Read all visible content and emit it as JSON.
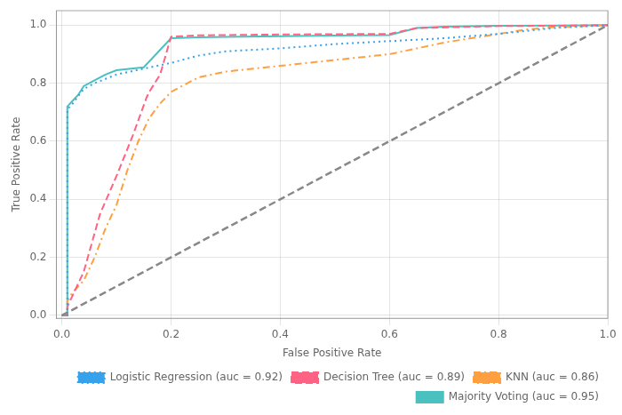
{
  "chart_data": {
    "type": "line",
    "xlabel": "False Positive Rate",
    "ylabel": "True Positive Rate",
    "xlim": [
      -0.01,
      1.0
    ],
    "ylim": [
      -0.01,
      1.05
    ],
    "xticks": [
      {
        "value": 0.0,
        "label": "0.0"
      },
      0.2,
      0.4,
      0.6,
      0.8,
      {
        "value": 1.0,
        "label": "1.0"
      }
    ],
    "yticks": [
      {
        "value": 0.0,
        "label": "0.0"
      },
      0.2,
      0.4,
      0.6,
      0.8,
      {
        "value": 1.0,
        "label": "1.0"
      }
    ],
    "grid": true,
    "legend": "lower right",
    "series": [
      {
        "color": "#888888",
        "line_style": "dashed",
        "x": [
          0.0,
          1.0
        ],
        "values": [
          0.0,
          1.0
        ]
      },
      {
        "name": "Logistic Regression (auc = 0.92)",
        "line_style": "dotted",
        "x": [
          0.0,
          0.01,
          0.01,
          0.02,
          0.04,
          0.06,
          0.1,
          0.15,
          0.2,
          0.22,
          0.25,
          0.3,
          0.35,
          0.4,
          0.5,
          0.6,
          0.65,
          0.7,
          0.8,
          0.85,
          0.9,
          1.0
        ],
        "values": [
          0.0,
          0.0,
          0.71,
          0.73,
          0.78,
          0.8,
          0.83,
          0.85,
          0.87,
          0.88,
          0.895,
          0.91,
          0.915,
          0.92,
          0.935,
          0.945,
          0.95,
          0.955,
          0.97,
          0.98,
          0.99,
          1.0
        ]
      },
      {
        "name": "Decision Tree (auc = 0.89)",
        "line_style": "dashed",
        "x": [
          0.0,
          0.01,
          0.01,
          0.02,
          0.04,
          0.07,
          0.1,
          0.13,
          0.155,
          0.16,
          0.18,
          0.2,
          0.25,
          0.4,
          0.6,
          0.65,
          0.8,
          0.9,
          1.0
        ],
        "values": [
          0.0,
          0.0,
          0.03,
          0.07,
          0.15,
          0.35,
          0.48,
          0.62,
          0.75,
          0.77,
          0.83,
          0.96,
          0.965,
          0.968,
          0.97,
          0.99,
          0.997,
          0.998,
          1.0
        ]
      },
      {
        "name": "KNN (auc = 0.86)",
        "line_style": "dashdot",
        "x": [
          0.0,
          0.01,
          0.01,
          0.02,
          0.04,
          0.06,
          0.08,
          0.1,
          0.12,
          0.14,
          0.16,
          0.18,
          0.2,
          0.22,
          0.25,
          0.3,
          0.4,
          0.5,
          0.6,
          0.65,
          0.7,
          0.8,
          0.85,
          0.9,
          1.0
        ],
        "values": [
          0.0,
          0.0,
          0.05,
          0.08,
          0.12,
          0.2,
          0.3,
          0.38,
          0.5,
          0.6,
          0.68,
          0.73,
          0.77,
          0.79,
          0.82,
          0.84,
          0.86,
          0.88,
          0.9,
          0.92,
          0.94,
          0.97,
          0.985,
          0.993,
          1.0
        ]
      },
      {
        "name": "Majority Voting (auc = 0.95)",
        "line_style": "solid",
        "x": [
          0.0,
          0.01,
          0.01,
          0.02,
          0.03,
          0.04,
          0.05,
          0.06,
          0.07,
          0.08,
          0.1,
          0.15,
          0.2,
          0.25,
          0.3,
          0.4,
          0.5,
          0.6,
          0.65,
          0.7,
          0.8,
          0.9,
          1.0
        ],
        "values": [
          0.0,
          0.0,
          0.72,
          0.74,
          0.76,
          0.79,
          0.8,
          0.81,
          0.82,
          0.83,
          0.845,
          0.855,
          0.955,
          0.958,
          0.96,
          0.962,
          0.964,
          0.966,
          0.99,
          0.995,
          0.998,
          0.999,
          1.0
        ]
      }
    ]
  }
}
